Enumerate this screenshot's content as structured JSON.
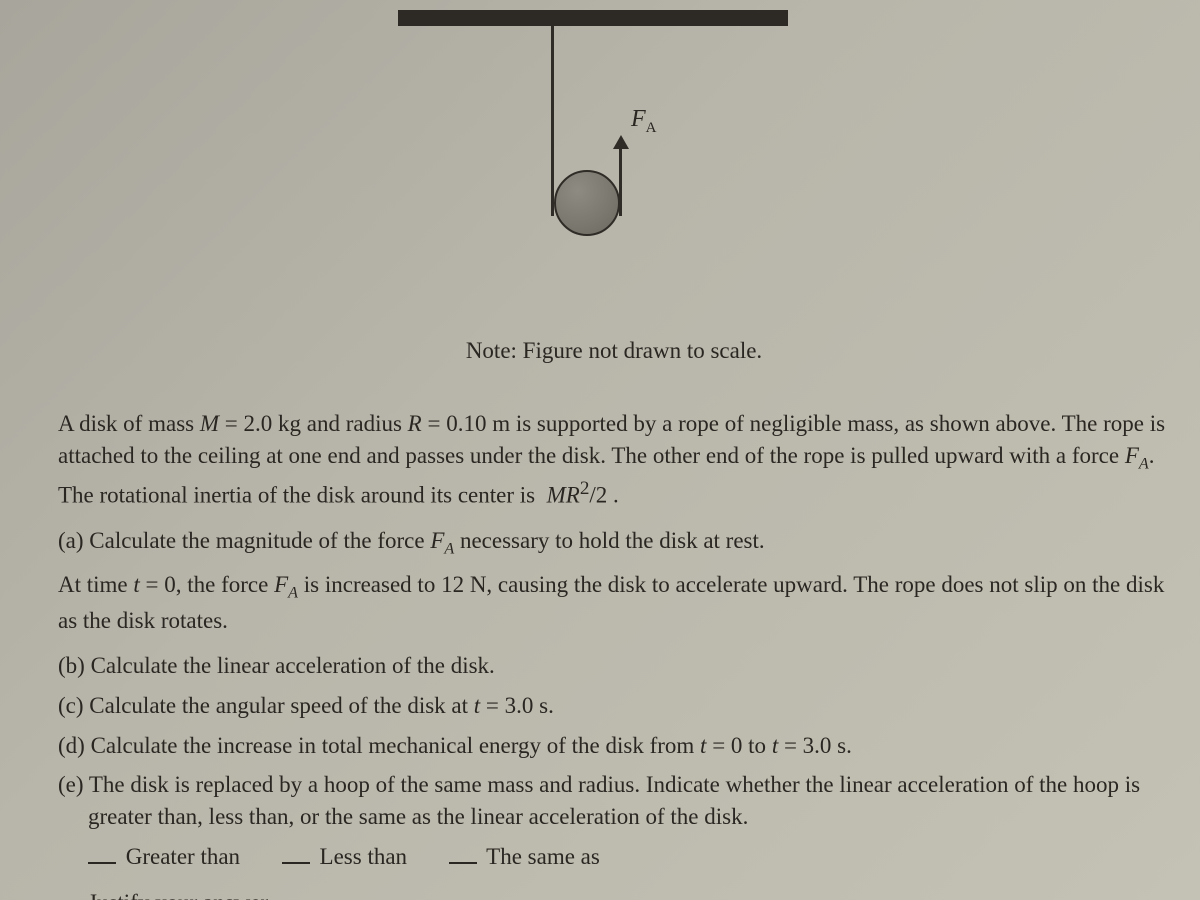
{
  "diagram": {
    "force_label_html": "F<sub>A</sub>"
  },
  "note": "Note:  Figure not drawn to scale.",
  "intro_html": "A disk of mass <span class='it'>M</span> = 2.0 kg and radius <span class='it'>R</span> = 0.10 m is supported by a rope of negligible mass, as shown above. The rope is attached to the ceiling at one end and passes under the disk. The other end of the rope is pulled upward with a force <span class='it'>F<sub>A</sub></span>. The rotational inertia of the disk around its center is &nbsp;<span class='it'>MR</span><sup>2</sup>/2 .",
  "part_a_html": "(a) Calculate the magnitude of the force <span class='it'>F<sub>A</sub></span> necessary to hold the disk at rest.",
  "mid_html": "At time <span class='it'>t</span> = 0, the force <span class='it'>F<sub>A</sub></span> is increased to 12 N, causing the disk to accelerate upward. The rope does not slip on the disk as the disk rotates.",
  "part_b": "(b) Calculate the linear acceleration of the disk.",
  "part_c_html": "(c) Calculate the angular speed of the disk at <span class='it'>t</span> = 3.0 s.",
  "part_d_html": "(d) Calculate the increase in total mechanical energy of the disk from <span class='it'>t</span> = 0 to <span class='it'>t</span> = 3.0 s.",
  "part_e": "(e) The disk is replaced by a hoop of the same mass and radius. Indicate whether the linear acceleration of the hoop is greater than, less than, or the same as the linear acceleration of the disk.",
  "choices": {
    "gt": "Greater than",
    "lt": "Less than",
    "same": "The same as"
  },
  "justify": "Justify your answer."
}
